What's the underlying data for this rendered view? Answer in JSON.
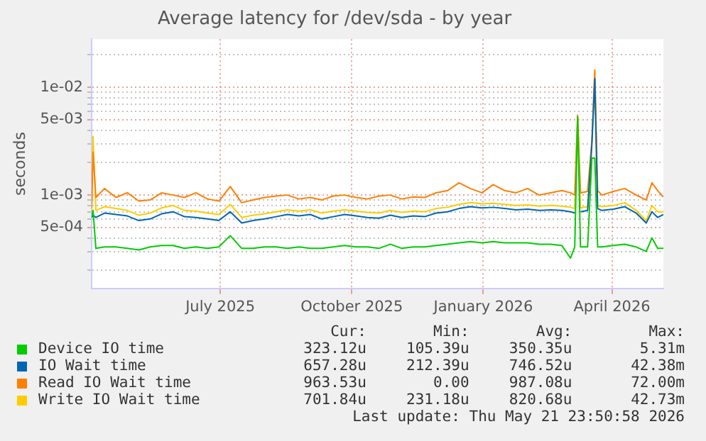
{
  "chart_data": {
    "type": "line",
    "title": "Average latency for /dev/sda - by year",
    "ylabel": "seconds",
    "log": "y",
    "grid": true,
    "legend": "bottom",
    "marker": "none",
    "line_style": "solid",
    "x": [
      "2025-04-16",
      "2025-04-17",
      "2025-04-19",
      "2025-04-25",
      "2025-05-03",
      "2025-05-11",
      "2025-05-19",
      "2025-05-27",
      "2025-06-04",
      "2025-06-12",
      "2025-06-20",
      "2025-06-28",
      "2025-07-06",
      "2025-07-14",
      "2025-07-22",
      "2025-07-30",
      "2025-08-07",
      "2025-08-15",
      "2025-08-23",
      "2025-08-31",
      "2025-09-08",
      "2025-09-16",
      "2025-09-24",
      "2025-10-02",
      "2025-10-10",
      "2025-10-18",
      "2025-10-26",
      "2025-11-03",
      "2025-11-11",
      "2025-11-19",
      "2025-11-27",
      "2025-12-05",
      "2025-12-13",
      "2025-12-21",
      "2025-12-29",
      "2026-01-06",
      "2026-01-14",
      "2026-01-22",
      "2026-01-30",
      "2026-02-07",
      "2026-02-15",
      "2026-02-23",
      "2026-03-03",
      "2026-03-11",
      "2026-03-17",
      "2026-03-20",
      "2026-03-22",
      "2026-03-24",
      "2026-03-29",
      "2026-04-01",
      "2026-04-03",
      "2026-04-05",
      "2026-04-08",
      "2026-04-16",
      "2026-04-24",
      "2026-05-02",
      "2026-05-09",
      "2026-05-13",
      "2026-05-17",
      "2026-05-21"
    ],
    "xlim": [
      "2025-04-16",
      "2026-05-21"
    ],
    "xticks": [
      {
        "value": "2025-07-15",
        "label": "July 2025"
      },
      {
        "value": "2025-10-15",
        "label": "October 2025"
      },
      {
        "value": "2026-01-15",
        "label": "January 2026"
      },
      {
        "value": "2026-04-15",
        "label": "April 2026"
      }
    ],
    "ylim": [
      0.000136,
      0.028
    ],
    "yticks": [
      {
        "value": 0.0002,
        "label": null
      },
      {
        "value": 0.0003,
        "label": null
      },
      {
        "value": 0.0004,
        "label": null
      },
      {
        "value": 0.0005,
        "label": "5e-04"
      },
      {
        "value": 0.0006,
        "label": null
      },
      {
        "value": 0.0007,
        "label": null
      },
      {
        "value": 0.0008,
        "label": null
      },
      {
        "value": 0.0009,
        "label": null
      },
      {
        "value": 0.001,
        "label": "1e-03"
      },
      {
        "value": 0.002,
        "label": null
      },
      {
        "value": 0.003,
        "label": null
      },
      {
        "value": 0.004,
        "label": null
      },
      {
        "value": 0.005,
        "label": "5e-03"
      },
      {
        "value": 0.006,
        "label": null
      },
      {
        "value": 0.007,
        "label": null
      },
      {
        "value": 0.008,
        "label": null
      },
      {
        "value": 0.009,
        "label": null
      },
      {
        "value": 0.01,
        "label": "1e-02"
      },
      {
        "value": 0.02,
        "label": null
      }
    ],
    "series": [
      {
        "name": "Device IO time",
        "color": "#00cc00",
        "values": [
          0.00065,
          0.00072,
          0.00032,
          0.00033,
          0.00033,
          0.00032,
          0.00031,
          0.00033,
          0.00034,
          0.00034,
          0.00032,
          0.00033,
          0.00032,
          0.00033,
          0.00042,
          0.00032,
          0.00032,
          0.00033,
          0.00033,
          0.00032,
          0.00033,
          0.00032,
          0.00032,
          0.00033,
          0.00034,
          0.00033,
          0.00033,
          0.00032,
          0.00035,
          0.00032,
          0.00033,
          0.00033,
          0.00034,
          0.00035,
          0.00036,
          0.00037,
          0.00036,
          0.00037,
          0.00036,
          0.00036,
          0.00036,
          0.00035,
          0.00035,
          0.00034,
          0.00026,
          0.00033,
          0.0053,
          0.00033,
          0.00033,
          0.0022,
          0.0022,
          0.00033,
          0.00033,
          0.00034,
          0.00035,
          0.00033,
          0.0003,
          0.0004,
          0.00032,
          0.00032
        ]
      },
      {
        "name": "IO Wait time",
        "color": "#0066b3",
        "values": [
          0.00062,
          0.00065,
          0.00062,
          0.00068,
          0.00066,
          0.00064,
          0.00058,
          0.0006,
          0.00067,
          0.0007,
          0.00063,
          0.00062,
          0.0006,
          0.00058,
          0.0007,
          0.00055,
          0.00058,
          0.0006,
          0.00063,
          0.00066,
          0.00064,
          0.00066,
          0.0006,
          0.00063,
          0.00066,
          0.00064,
          0.00062,
          0.00061,
          0.00065,
          0.00062,
          0.00064,
          0.00063,
          0.00068,
          0.0007,
          0.00075,
          0.00078,
          0.00076,
          0.00077,
          0.00075,
          0.00073,
          0.00074,
          0.00072,
          0.00073,
          0.00072,
          0.0007,
          0.00068,
          null,
          0.0007,
          0.00072,
          0.003,
          0.012,
          0.00075,
          0.00072,
          0.00074,
          0.00078,
          0.00068,
          0.00055,
          0.0007,
          0.00062,
          0.00066
        ]
      },
      {
        "name": "Read IO Wait time",
        "color": "#ff8000",
        "values": [
          0.00075,
          0.0025,
          0.00095,
          0.00115,
          0.00095,
          0.00105,
          0.00088,
          0.0009,
          0.00105,
          0.001,
          0.00095,
          0.00105,
          0.00092,
          0.00088,
          0.0012,
          0.00085,
          0.0009,
          0.00095,
          0.00098,
          0.001,
          0.00092,
          0.00095,
          0.0009,
          0.00098,
          0.001,
          0.00095,
          0.00092,
          0.00098,
          0.001,
          0.00092,
          0.00096,
          0.00095,
          0.00105,
          0.0011,
          0.0013,
          0.00115,
          0.00105,
          0.00125,
          0.0011,
          0.00105,
          0.00115,
          0.001,
          0.00105,
          0.0011,
          0.00105,
          0.001,
          0.0055,
          0.00105,
          0.00108,
          0.0032,
          0.0145,
          0.0011,
          0.001,
          0.00108,
          0.00115,
          0.001,
          0.0009,
          0.0013,
          0.0011,
          0.00096
        ]
      },
      {
        "name": "Write IO Wait time",
        "color": "#ffcc00",
        "values": [
          0.00068,
          0.0035,
          0.00072,
          0.00078,
          0.00075,
          0.00072,
          0.00065,
          0.00068,
          0.00076,
          0.0008,
          0.00072,
          0.00071,
          0.00068,
          0.00066,
          0.00082,
          0.00062,
          0.00065,
          0.00067,
          0.0007,
          0.00073,
          0.00071,
          0.00073,
          0.00068,
          0.00071,
          0.00073,
          0.00071,
          0.00069,
          0.00068,
          0.00072,
          0.00069,
          0.00071,
          0.0007,
          0.00075,
          0.00077,
          0.00082,
          0.00085,
          0.00083,
          0.00084,
          0.00082,
          0.0008,
          0.00081,
          0.00079,
          0.0008,
          0.00079,
          0.00077,
          0.00075,
          0.0054,
          0.00076,
          0.00078,
          0.0031,
          0.0125,
          0.0008,
          0.00078,
          0.0008,
          0.00085,
          0.00072,
          0.00058,
          0.0008,
          0.0007,
          0.0007
        ]
      }
    ],
    "annotations": [
      "Cur:",
      "Min:",
      "Avg:",
      "Max:",
      "323.12u",
      "105.39u",
      "350.35u",
      "5.31m",
      "657.28u",
      "212.39u",
      "746.52u",
      "42.38m",
      "963.53u",
      "0.00",
      "987.08u",
      "72.00m",
      "701.84u",
      "231.18u",
      "820.68u",
      "42.73m",
      "Last update: Thu May 21 23:50:58 2026"
    ]
  }
}
